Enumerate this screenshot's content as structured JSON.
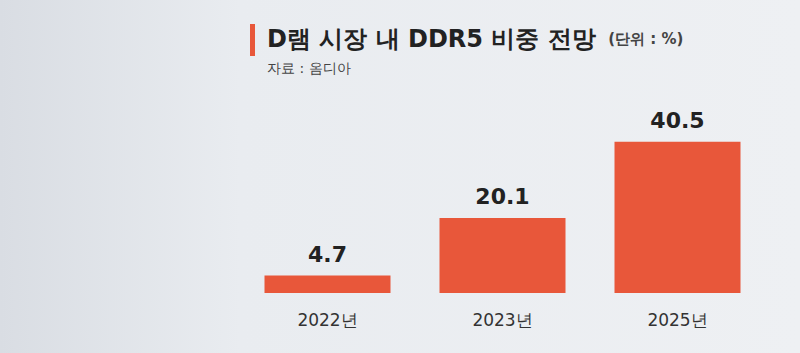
{
  "chart_data": {
    "type": "bar",
    "title": "D램 시장 내 DDR5 비중 전망",
    "subtitle": "(단위 : %)",
    "source": "자료 : 옴디아",
    "categories": [
      "2022년",
      "2023년",
      "2025년"
    ],
    "values": [
      4.7,
      20.1,
      40.5
    ],
    "color": "#e8573a",
    "ylim": [
      0,
      45
    ],
    "yticks": [
      0,
      45
    ],
    "grid": false,
    "data_labels": true,
    "tick_labels": "x"
  }
}
